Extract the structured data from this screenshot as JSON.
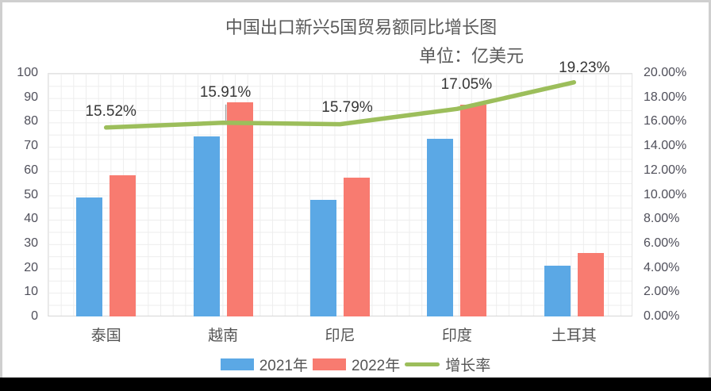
{
  "title": {
    "line1": "中国出口新兴5国贸易额同比增长图",
    "line2": "单位：亿美元"
  },
  "chart_data": {
    "type": "bar+line combo",
    "categories": [
      "泰国",
      "越南",
      "印尼",
      "印度",
      "土耳其"
    ],
    "series": [
      {
        "key": "2021",
        "name": "2021年",
        "type": "bar",
        "color": "#5BA8E5",
        "axis": "left",
        "values": [
          49,
          74,
          48,
          73,
          21
        ]
      },
      {
        "key": "2022",
        "name": "2022年",
        "type": "bar",
        "color": "#F87B70",
        "axis": "left",
        "values": [
          58,
          88,
          57,
          87,
          26
        ]
      },
      {
        "key": "growth-rate",
        "name": "增长率",
        "type": "line",
        "color": "#9CBE5B",
        "axis": "right",
        "values": [
          15.52,
          15.91,
          15.79,
          17.05,
          19.23
        ],
        "labels": [
          "15.52%",
          "15.91%",
          "15.79%",
          "17.05%",
          "19.23%"
        ]
      }
    ],
    "left_axis": {
      "min": 0,
      "max": 100,
      "step": 10
    },
    "right_axis": {
      "min": 0,
      "max": 20,
      "step": 2,
      "format": "percent2"
    },
    "grid": "minor horizontal and vertical gridlines on",
    "legend_position": "bottom"
  },
  "colors": {
    "bar_2021": "#5BA8E5",
    "bar_2022": "#F87B70",
    "growth_line": "#9CBE5B",
    "title_text": "#595959",
    "axis_text": "#4f4f5a",
    "gridline": "#ededed",
    "leader_line": "#a6a6a6",
    "bottom_bar": "#000000"
  }
}
